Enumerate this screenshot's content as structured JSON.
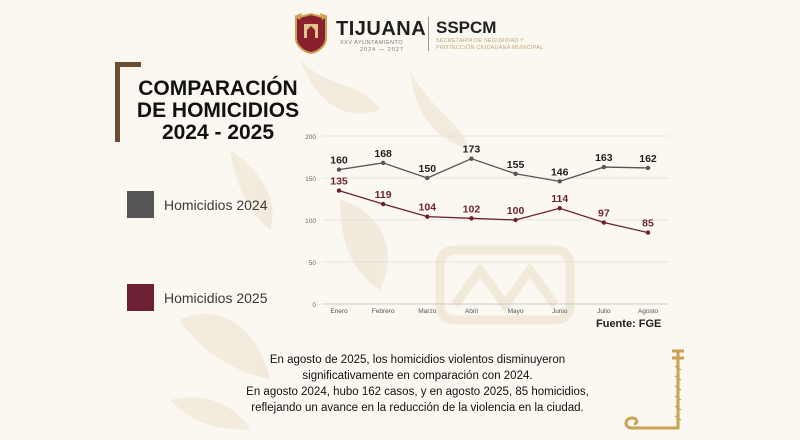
{
  "header": {
    "city": "TIJUANA",
    "city_sub": "XXV AYUNTAMIENTO",
    "city_years": "2024 — 2027",
    "agency": "SSPCM",
    "agency_sub1": "SECRETARÍA DE SEGURIDAD Y",
    "agency_sub2": "PROTECCIÓN CIUDADANA MUNICIPAL"
  },
  "title_lines": [
    "COMPARACIÓN",
    "DE HOMICIDIOS",
    "2024 - 2025"
  ],
  "legend": [
    {
      "label": "Homicidios 2024",
      "color": "#555555"
    },
    {
      "label": "Homicidios 2025",
      "color": "#6d1f33"
    }
  ],
  "source": "Fuente: FGE",
  "summary": [
    "En agosto de 2025, los homicidios violentos disminuyeron",
    "significativamente en comparación con 2024.",
    "En agosto 2024, hubo 162 casos, y en agosto 2025, 85 homicidios,",
    "reflejando un avance en la reducción de la violencia en la ciudad."
  ],
  "chart_data": {
    "type": "line",
    "categories": [
      "Enero",
      "Febrero",
      "Marzo",
      "Abril",
      "Mayo",
      "Junio",
      "Julio",
      "Agosto"
    ],
    "series": [
      {
        "name": "Homicidios 2024",
        "values": [
          160,
          168,
          150,
          173,
          155,
          146,
          163,
          162
        ],
        "color": "#555555"
      },
      {
        "name": "Homicidios 2025",
        "values": [
          135,
          119,
          104,
          102,
          100,
          114,
          97,
          85
        ],
        "color": "#6d1f33"
      }
    ],
    "yticks": [
      0,
      50,
      100,
      150,
      200
    ],
    "ylim": [
      0,
      200
    ],
    "grid": true,
    "title": "",
    "xlabel": "",
    "ylabel": ""
  }
}
